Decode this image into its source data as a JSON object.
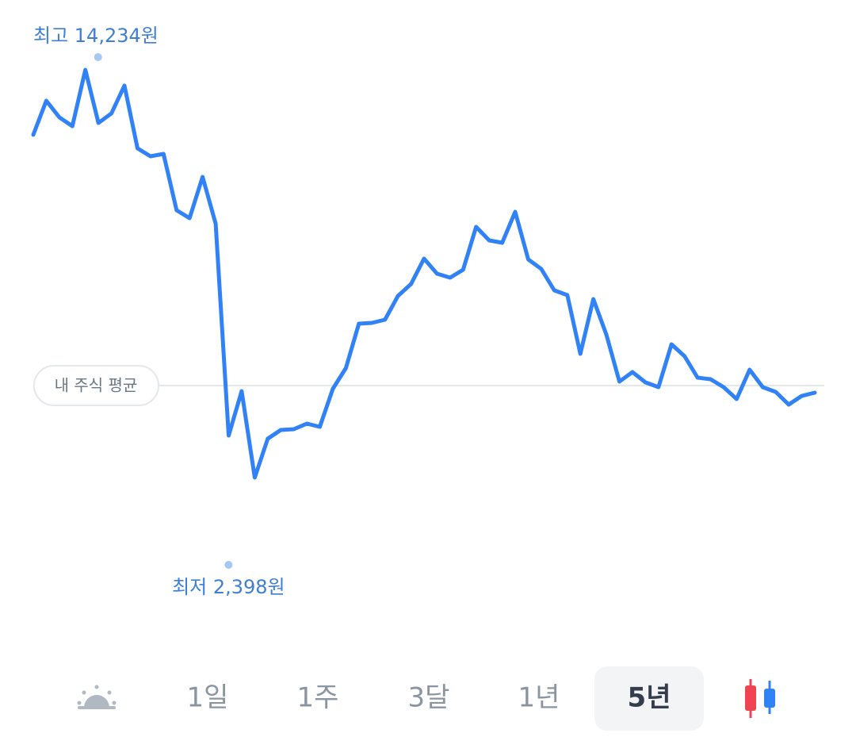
{
  "chart_data": {
    "type": "line",
    "color": "#3182f6",
    "values": [
      12347,
      13337,
      12854,
      12600,
      14234,
      12692,
      12969,
      13775,
      11955,
      11725,
      11794,
      10159,
      9929,
      11126,
      9768,
      3619,
      4908,
      2398,
      3526,
      3780,
      3803,
      3964,
      3872,
      4977,
      5576,
      6866,
      6889,
      6981,
      7672,
      8017,
      8754,
      8317,
      8202,
      8432,
      9675,
      9284,
      9215,
      10113,
      8731,
      8455,
      7833,
      7695,
      5991,
      7580,
      6543,
      5185,
      5461,
      5162,
      5023,
      6267,
      5922,
      5300,
      5254,
      5023,
      4678,
      5530,
      5023,
      4885,
      4517,
      4770,
      4862
    ],
    "high_label": "최고 14,234원",
    "low_label": "최저 2,398원",
    "reference": {
      "label": "내 주식 평균",
      "value": 5069
    }
  },
  "tabs": {
    "items": [
      "1일",
      "1주",
      "3달",
      "1년",
      "5년"
    ],
    "selected": 4
  }
}
